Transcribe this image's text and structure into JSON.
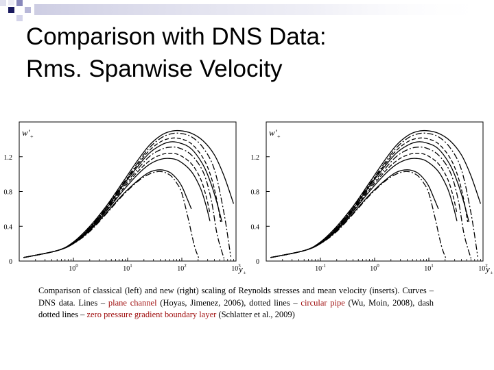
{
  "title": {
    "line1": "Comparison with DNS Data:",
    "line2": "Rms. Spanwise Velocity"
  },
  "chart_data": [
    {
      "type": "line",
      "ylabel": "w'+",
      "xlabel": "y+",
      "x_scale": "log",
      "xlim": [
        0.1,
        1000
      ],
      "ylim": [
        0,
        1.6
      ],
      "x_ticks": [
        {
          "value": 1,
          "label": "10^0"
        },
        {
          "value": 10,
          "label": "10^1"
        },
        {
          "value": 100,
          "label": "10^2"
        },
        {
          "value": 1000,
          "label": "10^3"
        }
      ],
      "y_ticks": [
        {
          "value": 0,
          "label": "0"
        },
        {
          "value": 0.4,
          "label": "0.4"
        },
        {
          "value": 0.8,
          "label": "0.8"
        },
        {
          "value": 1.2,
          "label": "1.2"
        }
      ],
      "grid": false,
      "curves": [
        {
          "style": "solid",
          "x": [
            0.12,
            0.5,
            1,
            2,
            4,
            8,
            15,
            25,
            40,
            60,
            90,
            150,
            250,
            400,
            600,
            900
          ],
          "y": [
            0.04,
            0.12,
            0.22,
            0.4,
            0.63,
            0.9,
            1.15,
            1.33,
            1.44,
            1.49,
            1.5,
            1.47,
            1.38,
            1.22,
            0.98,
            0.66
          ]
        },
        {
          "style": "dashdot",
          "x": [
            0.12,
            0.5,
            1,
            2,
            4,
            8,
            15,
            25,
            40,
            60,
            90,
            150,
            250,
            400,
            600,
            800
          ],
          "y": [
            0.04,
            0.12,
            0.21,
            0.39,
            0.62,
            0.88,
            1.12,
            1.3,
            1.41,
            1.46,
            1.47,
            1.43,
            1.3,
            1.05,
            0.55,
            0.05
          ]
        },
        {
          "style": "dashed",
          "x": [
            0.12,
            0.5,
            1,
            2,
            4,
            8,
            15,
            25,
            40,
            60,
            90,
            150,
            250,
            350,
            450,
            520
          ],
          "y": [
            0.04,
            0.12,
            0.21,
            0.38,
            0.61,
            0.87,
            1.1,
            1.27,
            1.37,
            1.41,
            1.41,
            1.35,
            1.18,
            0.96,
            0.68,
            0.45
          ]
        },
        {
          "style": "solid",
          "x": [
            0.12,
            0.5,
            1,
            2,
            4,
            8,
            15,
            25,
            40,
            60,
            90,
            150,
            250,
            350,
            450,
            550
          ],
          "y": [
            0.04,
            0.12,
            0.21,
            0.38,
            0.6,
            0.86,
            1.08,
            1.24,
            1.33,
            1.37,
            1.36,
            1.29,
            1.1,
            0.88,
            0.66,
            0.45
          ]
        },
        {
          "style": "dashdot",
          "x": [
            0.12,
            0.5,
            1,
            2,
            4,
            8,
            15,
            25,
            40,
            60,
            90,
            150,
            250,
            350,
            450,
            600
          ],
          "y": [
            0.04,
            0.12,
            0.21,
            0.37,
            0.59,
            0.84,
            1.05,
            1.2,
            1.28,
            1.31,
            1.3,
            1.22,
            1.02,
            0.7,
            0.3,
            0.03
          ]
        },
        {
          "style": "dashed",
          "x": [
            0.12,
            0.5,
            1,
            2,
            4,
            8,
            15,
            25,
            40,
            60,
            90,
            150,
            220,
            280,
            330
          ],
          "y": [
            0.04,
            0.12,
            0.21,
            0.37,
            0.58,
            0.82,
            1.02,
            1.15,
            1.22,
            1.24,
            1.22,
            1.12,
            0.95,
            0.75,
            0.55
          ]
        },
        {
          "style": "solid",
          "x": [
            0.12,
            0.5,
            1,
            2,
            4,
            8,
            15,
            25,
            40,
            60,
            90,
            150,
            220,
            280,
            330
          ],
          "y": [
            0.04,
            0.12,
            0.21,
            0.36,
            0.57,
            0.8,
            0.99,
            1.11,
            1.17,
            1.18,
            1.15,
            1.03,
            0.84,
            0.64,
            0.46
          ]
        },
        {
          "style": "solid",
          "x": [
            0.12,
            0.5,
            1,
            2,
            4,
            8,
            15,
            25,
            40,
            60,
            80,
            100,
            125,
            150
          ],
          "y": [
            0.04,
            0.12,
            0.2,
            0.35,
            0.55,
            0.76,
            0.92,
            1.02,
            1.05,
            1.02,
            0.95,
            0.86,
            0.72,
            0.6
          ]
        },
        {
          "style": "dashdot",
          "x": [
            0.12,
            0.5,
            1,
            2,
            4,
            8,
            15,
            25,
            40,
            60,
            80,
            100,
            130,
            170,
            210
          ],
          "y": [
            0.04,
            0.12,
            0.2,
            0.34,
            0.54,
            0.75,
            0.91,
            1.0,
            1.03,
            0.99,
            0.9,
            0.78,
            0.5,
            0.18,
            0.02
          ]
        }
      ]
    },
    {
      "type": "line",
      "ylabel": "w'+",
      "xlabel": "y+",
      "x_scale": "log",
      "xlim": [
        0.01,
        100
      ],
      "ylim": [
        0,
        1.6
      ],
      "x_ticks": [
        {
          "value": 0.1,
          "label": "10^-1"
        },
        {
          "value": 1,
          "label": "10^0"
        },
        {
          "value": 10,
          "label": "10^1"
        },
        {
          "value": 100,
          "label": "10^2"
        }
      ],
      "y_ticks": [
        {
          "value": 0,
          "label": "0"
        },
        {
          "value": 0.4,
          "label": "0.4"
        },
        {
          "value": 0.8,
          "label": "0.8"
        },
        {
          "value": 1.2,
          "label": "1.2"
        }
      ],
      "grid": false,
      "curves": [
        {
          "style": "solid",
          "x": [
            0.012,
            0.05,
            0.1,
            0.2,
            0.4,
            0.8,
            1.5,
            2.5,
            4,
            6,
            9,
            15,
            25,
            40,
            60,
            90
          ],
          "y": [
            0.04,
            0.12,
            0.22,
            0.4,
            0.63,
            0.9,
            1.15,
            1.33,
            1.44,
            1.49,
            1.5,
            1.47,
            1.38,
            1.22,
            0.98,
            0.66
          ]
        },
        {
          "style": "dashdot",
          "x": [
            0.012,
            0.05,
            0.1,
            0.2,
            0.4,
            0.8,
            1.5,
            2.5,
            4,
            6,
            9,
            15,
            25,
            40,
            60,
            80
          ],
          "y": [
            0.04,
            0.12,
            0.21,
            0.39,
            0.62,
            0.88,
            1.12,
            1.3,
            1.41,
            1.46,
            1.47,
            1.43,
            1.3,
            1.05,
            0.55,
            0.05
          ]
        },
        {
          "style": "dashed",
          "x": [
            0.012,
            0.05,
            0.1,
            0.2,
            0.4,
            0.8,
            1.5,
            2.5,
            4,
            6,
            9,
            15,
            25,
            35,
            45,
            52
          ],
          "y": [
            0.04,
            0.12,
            0.21,
            0.38,
            0.61,
            0.87,
            1.1,
            1.27,
            1.37,
            1.41,
            1.41,
            1.35,
            1.18,
            0.96,
            0.68,
            0.45
          ]
        },
        {
          "style": "solid",
          "x": [
            0.012,
            0.05,
            0.1,
            0.2,
            0.4,
            0.8,
            1.5,
            2.5,
            4,
            6,
            9,
            15,
            25,
            35,
            45,
            55
          ],
          "y": [
            0.04,
            0.12,
            0.21,
            0.38,
            0.6,
            0.86,
            1.08,
            1.24,
            1.33,
            1.37,
            1.36,
            1.29,
            1.1,
            0.88,
            0.66,
            0.45
          ]
        },
        {
          "style": "dashdot",
          "x": [
            0.012,
            0.05,
            0.1,
            0.2,
            0.4,
            0.8,
            1.5,
            2.5,
            4,
            6,
            9,
            15,
            25,
            35,
            45,
            60
          ],
          "y": [
            0.04,
            0.12,
            0.21,
            0.37,
            0.59,
            0.84,
            1.05,
            1.2,
            1.28,
            1.31,
            1.3,
            1.22,
            1.02,
            0.7,
            0.3,
            0.03
          ]
        },
        {
          "style": "dashed",
          "x": [
            0.012,
            0.05,
            0.1,
            0.2,
            0.4,
            0.8,
            1.5,
            2.5,
            4,
            6,
            9,
            15,
            22,
            28,
            33
          ],
          "y": [
            0.04,
            0.12,
            0.21,
            0.37,
            0.58,
            0.82,
            1.02,
            1.15,
            1.22,
            1.24,
            1.22,
            1.12,
            0.95,
            0.75,
            0.55
          ]
        },
        {
          "style": "solid",
          "x": [
            0.012,
            0.05,
            0.1,
            0.2,
            0.4,
            0.8,
            1.5,
            2.5,
            4,
            6,
            9,
            15,
            22,
            28,
            33
          ],
          "y": [
            0.04,
            0.12,
            0.21,
            0.36,
            0.57,
            0.8,
            0.99,
            1.11,
            1.17,
            1.18,
            1.15,
            1.03,
            0.84,
            0.64,
            0.46
          ]
        },
        {
          "style": "solid",
          "x": [
            0.012,
            0.05,
            0.1,
            0.2,
            0.4,
            0.8,
            1.5,
            2.5,
            4,
            6,
            8,
            10,
            12.5,
            15
          ],
          "y": [
            0.04,
            0.12,
            0.2,
            0.35,
            0.55,
            0.76,
            0.92,
            1.02,
            1.05,
            1.02,
            0.95,
            0.86,
            0.72,
            0.6
          ]
        },
        {
          "style": "dashdot",
          "x": [
            0.012,
            0.05,
            0.1,
            0.2,
            0.4,
            0.8,
            1.5,
            2.5,
            4,
            6,
            8,
            10,
            13,
            17,
            21
          ],
          "y": [
            0.04,
            0.12,
            0.2,
            0.34,
            0.54,
            0.75,
            0.91,
            1.0,
            1.03,
            0.99,
            0.9,
            0.78,
            0.5,
            0.18,
            0.02
          ]
        }
      ]
    }
  ],
  "caption": {
    "seg1": "Comparison of classical (left) and new (right) scaling of Reynolds stresses and mean velocity (inserts). Curves – DNS data. Lines – ",
    "plane": "plane channel",
    "seg2": " (Hoyas, Jimenez, 2006), dotted lines – ",
    "pipe": "circular pipe",
    "seg3": " (Wu, Moin, 2008), dash dotted lines – ",
    "zpg": "zero pressure gradient boundary layer",
    "seg4": " (Schlatter et al., 2009)"
  },
  "colors": {
    "highlight": "#a01010",
    "deco_dark": "#1a1a5e",
    "deco_mid": "#8888bb",
    "deco_light": "#d4d4ea"
  }
}
